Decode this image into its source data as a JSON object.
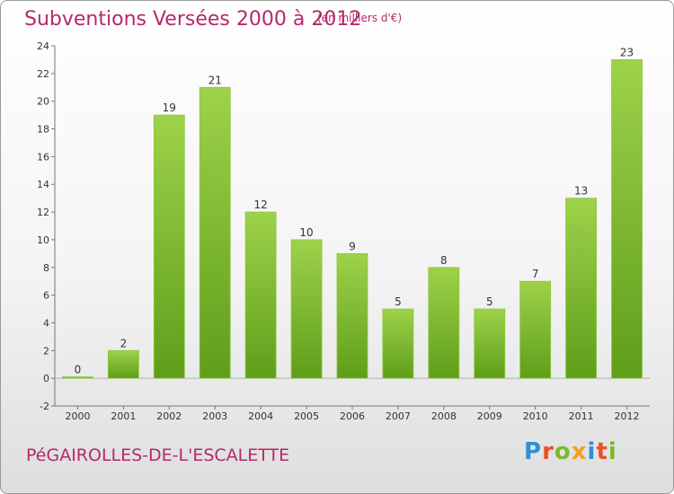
{
  "chart_data": {
    "type": "bar",
    "title": "Subventions Versées 2000 à 2012",
    "subtitle": "(en milliers d'€)",
    "categories": [
      "2000",
      "2001",
      "2002",
      "2003",
      "2004",
      "2005",
      "2006",
      "2007",
      "2008",
      "2009",
      "2010",
      "2011",
      "2012"
    ],
    "values": [
      0,
      2,
      19,
      21,
      12,
      10,
      9,
      5,
      8,
      5,
      7,
      13,
      23
    ],
    "ylim": [
      -2,
      24
    ],
    "yticks": [
      -2,
      0,
      2,
      4,
      6,
      8,
      10,
      12,
      14,
      16,
      18,
      20,
      22,
      24
    ],
    "grid": false,
    "bar_color": "#7fbf2f"
  },
  "footer": {
    "place": "PéGAIROLLES-DE-L'ESCALETTE",
    "brand": "Proxiti",
    "brand_colors": [
      "#2f8fd6",
      "#e8502a",
      "#7cb82f",
      "#f0a01e",
      "#2f8fd6",
      "#e8502a",
      "#7cb82f"
    ]
  }
}
